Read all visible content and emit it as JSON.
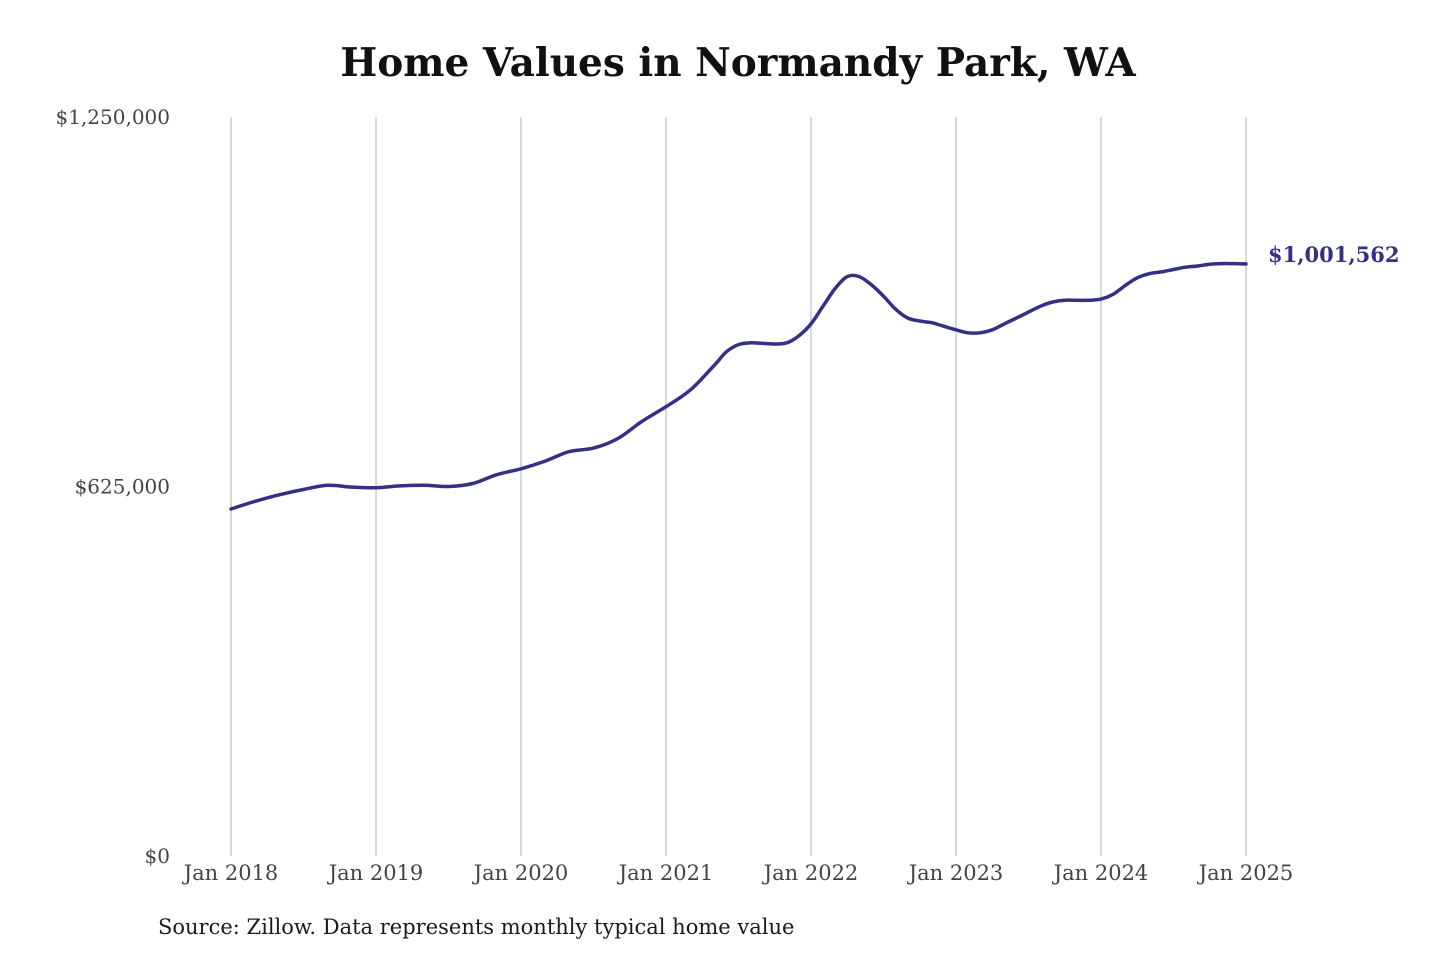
{
  "chart_data": {
    "type": "line",
    "title": "Home Values in Normandy Park, WA",
    "source": "Source: Zillow. Data represents monthly typical home value",
    "xlabel": "",
    "ylabel": "",
    "ylim": [
      0,
      1250000
    ],
    "yticks": [
      {
        "value": 0,
        "label": "$0"
      },
      {
        "value": 625000,
        "label": "$625,000"
      },
      {
        "value": 1250000,
        "label": "$1,250,000"
      }
    ],
    "xticks": [
      {
        "value": 2018.0,
        "label": "Jan 2018"
      },
      {
        "value": 2019.0,
        "label": "Jan 2019"
      },
      {
        "value": 2020.0,
        "label": "Jan 2020"
      },
      {
        "value": 2021.0,
        "label": "Jan 2021"
      },
      {
        "value": 2022.0,
        "label": "Jan 2022"
      },
      {
        "value": 2023.0,
        "label": "Jan 2023"
      },
      {
        "value": 2024.0,
        "label": "Jan 2024"
      },
      {
        "value": 2025.0,
        "label": "Jan 2025"
      }
    ],
    "grid": "vertical",
    "line_color": "#343084",
    "end_label": "$1,001,562",
    "series": [
      {
        "x": [
          "Jan 2018",
          "Mar 2018",
          "May 2018",
          "Jul 2018",
          "Sep 2018",
          "Nov 2018",
          "Jan 2019",
          "Mar 2019",
          "May 2019",
          "Jul 2019",
          "Sep 2019",
          "Nov 2019",
          "Jan 2020",
          "Mar 2020",
          "May 2020",
          "Jul 2020",
          "Sep 2020",
          "Nov 2020",
          "Jan 2021",
          "Mar 2021",
          "May 2021",
          "Jun 2021",
          "Jul 2021",
          "Aug 2021",
          "Sep 2021",
          "Oct 2021",
          "Nov 2021",
          "Dec 2021",
          "Jan 2022",
          "Feb 2022",
          "Mar 2022",
          "Apr 2022",
          "May 2022",
          "Jun 2022",
          "Jul 2022",
          "Aug 2022",
          "Sep 2022",
          "Oct 2022",
          "Nov 2022",
          "Dec 2022",
          "Jan 2023",
          "Feb 2023",
          "Mar 2023",
          "Apr 2023",
          "May 2023",
          "Jun 2023",
          "Jul 2023",
          "Aug 2023",
          "Sep 2023",
          "Oct 2023",
          "Nov 2023",
          "Dec 2023",
          "Jan 2024",
          "Feb 2024",
          "Mar 2024",
          "Apr 2024",
          "May 2024",
          "Jun 2024",
          "Jul 2024",
          "Aug 2024",
          "Sep 2024",
          "Oct 2024",
          "Nov 2024",
          "Dec 2024",
          "Jan 2025"
        ],
        "t": [
          2018.0,
          2018.167,
          2018.333,
          2018.5,
          2018.667,
          2018.833,
          2019.0,
          2019.167,
          2019.333,
          2019.5,
          2019.667,
          2019.833,
          2020.0,
          2020.167,
          2020.333,
          2020.5,
          2020.667,
          2020.833,
          2021.0,
          2021.167,
          2021.333,
          2021.417,
          2021.5,
          2021.583,
          2021.667,
          2021.75,
          2021.833,
          2021.917,
          2022.0,
          2022.083,
          2022.167,
          2022.25,
          2022.333,
          2022.417,
          2022.5,
          2022.583,
          2022.667,
          2022.75,
          2022.833,
          2022.917,
          2023.0,
          2023.083,
          2023.167,
          2023.25,
          2023.333,
          2023.417,
          2023.5,
          2023.583,
          2023.667,
          2023.75,
          2023.833,
          2023.917,
          2024.0,
          2024.083,
          2024.167,
          2024.25,
          2024.333,
          2024.417,
          2024.5,
          2024.583,
          2024.667,
          2024.75,
          2024.833,
          2024.917,
          2025.0
        ],
        "values": [
          587000,
          600000,
          611000,
          620000,
          627000,
          624000,
          623000,
          626000,
          627000,
          625000,
          630000,
          645000,
          655000,
          668000,
          684000,
          690000,
          706000,
          735000,
          760000,
          788000,
          830000,
          853000,
          865000,
          868000,
          867000,
          866000,
          868000,
          880000,
          900000,
          930000,
          960000,
          980000,
          980000,
          966000,
          947000,
          925000,
          910000,
          905000,
          902000,
          896000,
          890000,
          885000,
          885000,
          890000,
          900000,
          910000,
          920000,
          930000,
          937000,
          940000,
          940000,
          940000,
          942000,
          950000,
          965000,
          978000,
          985000,
          988000,
          992000,
          996000,
          998000,
          1001000,
          1002000,
          1002000,
          1001562
        ]
      }
    ]
  }
}
